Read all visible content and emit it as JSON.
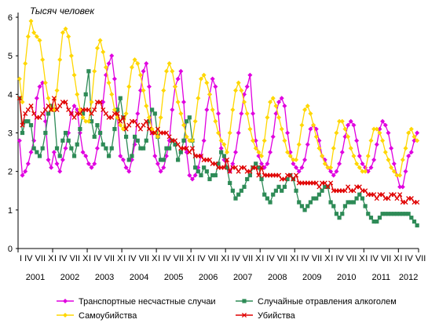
{
  "chart_data": {
    "type": "line",
    "unit_label": "Тысяч человек",
    "ylim": [
      0,
      6
    ],
    "y_ticks": [
      0,
      1,
      2,
      3,
      4,
      5,
      6
    ],
    "x_tick_label": "I IV VII X",
    "years": [
      "2001",
      "2002",
      "2003",
      "2004",
      "2005",
      "2006",
      "2007",
      "2008",
      "2009",
      "2010",
      "2011",
      "2012"
    ],
    "last_year_months": 7,
    "grid": false,
    "legend_position": "bottom",
    "series": [
      {
        "name": "Транспортные несчастные случаи",
        "color": "#e000e0",
        "marker": "diamond",
        "values": [
          2.8,
          1.9,
          2.0,
          2.2,
          2.5,
          2.8,
          3.9,
          4.2,
          4.3,
          3.3,
          2.3,
          2.1,
          2.5,
          2.2,
          2.0,
          2.3,
          2.6,
          3.0,
          3.5,
          3.7,
          3.6,
          3.0,
          2.5,
          2.4,
          2.2,
          2.1,
          2.2,
          2.6,
          3.0,
          3.8,
          4.5,
          4.8,
          5.0,
          4.4,
          3.4,
          2.4,
          2.3,
          2.1,
          2.0,
          2.3,
          2.7,
          3.5,
          4.1,
          4.6,
          4.8,
          4.2,
          3.0,
          2.4,
          2.2,
          2.0,
          2.1,
          2.4,
          2.8,
          3.6,
          4.2,
          4.4,
          4.6,
          3.8,
          2.5,
          1.9,
          1.8,
          1.9,
          2.1,
          2.4,
          2.8,
          3.6,
          4.0,
          4.4,
          4.2,
          3.5,
          2.6,
          2.3,
          2.1,
          2.0,
          2.2,
          2.5,
          3.0,
          3.5,
          4.0,
          4.2,
          4.5,
          3.5,
          2.8,
          2.4,
          2.2,
          2.1,
          2.2,
          2.5,
          2.9,
          3.5,
          3.8,
          3.9,
          3.7,
          3.0,
          2.5,
          2.2,
          2.1,
          2.0,
          2.1,
          2.3,
          2.7,
          3.1,
          3.2,
          3.1,
          2.8,
          2.4,
          2.3,
          2.1,
          2.0,
          1.9,
          2.0,
          2.2,
          2.5,
          2.9,
          3.2,
          3.3,
          3.2,
          2.8,
          2.4,
          2.2,
          2.1,
          2.0,
          2.1,
          2.3,
          2.7,
          3.1,
          3.3,
          3.2,
          3.0,
          2.6,
          2.2,
          1.9,
          1.6,
          1.6,
          2.0,
          2.4,
          2.5,
          2.8,
          3.0
        ]
      },
      {
        "name": "Случайные отравления алкоголем",
        "color": "#2e8b57",
        "marker": "square",
        "values": [
          3.9,
          3.0,
          3.3,
          3.3,
          3.2,
          2.6,
          2.5,
          2.4,
          2.6,
          3.0,
          3.5,
          3.7,
          3.6,
          2.6,
          2.4,
          2.8,
          3.0,
          2.8,
          2.6,
          2.4,
          2.7,
          3.1,
          3.5,
          4.0,
          4.6,
          3.3,
          2.9,
          3.2,
          3.0,
          2.7,
          2.6,
          2.4,
          2.6,
          3.1,
          3.6,
          3.9,
          3.4,
          2.9,
          2.3,
          2.4,
          2.9,
          2.8,
          2.6,
          2.6,
          2.8,
          3.3,
          3.6,
          3.5,
          2.9,
          2.3,
          2.3,
          2.6,
          2.6,
          2.8,
          2.7,
          2.3,
          2.5,
          2.8,
          3.3,
          3.4,
          2.8,
          2.1,
          2.0,
          1.9,
          2.1,
          2.0,
          1.8,
          1.9,
          1.9,
          2.2,
          2.5,
          2.4,
          2.1,
          1.7,
          1.5,
          1.3,
          1.4,
          1.5,
          1.6,
          1.8,
          1.9,
          2.1,
          2.2,
          2.1,
          1.8,
          1.4,
          1.3,
          1.2,
          1.4,
          1.5,
          1.6,
          1.5,
          1.6,
          1.8,
          1.9,
          1.8,
          1.5,
          1.2,
          1.1,
          1.0,
          1.1,
          1.2,
          1.3,
          1.3,
          1.4,
          1.5,
          1.6,
          1.6,
          1.2,
          1.1,
          0.9,
          0.8,
          0.9,
          1.1,
          1.2,
          1.2,
          1.2,
          1.3,
          1.4,
          1.3,
          1.1,
          0.9,
          0.8,
          0.7,
          0.7,
          0.8,
          0.9,
          0.9,
          0.9,
          0.9,
          0.9,
          0.9,
          0.9,
          0.9,
          0.9,
          0.9,
          0.8,
          0.7,
          0.6
        ]
      },
      {
        "name": "Самоубийства",
        "color": "#ffd700",
        "marker": "diamond",
        "values": [
          4.4,
          3.8,
          4.8,
          5.5,
          5.9,
          5.6,
          5.5,
          5.4,
          4.9,
          4.3,
          3.9,
          3.6,
          3.6,
          4.1,
          4.9,
          5.6,
          5.7,
          5.5,
          5.0,
          4.5,
          4.0,
          3.6,
          3.4,
          3.3,
          3.3,
          3.8,
          4.6,
          5.2,
          5.4,
          5.1,
          4.7,
          4.3,
          4.0,
          3.6,
          3.4,
          3.2,
          3.1,
          3.5,
          4.2,
          4.7,
          4.9,
          4.8,
          4.5,
          4.1,
          3.7,
          3.4,
          3.1,
          3.0,
          2.9,
          3.4,
          4.1,
          4.6,
          4.8,
          4.6,
          4.2,
          3.8,
          3.5,
          3.2,
          2.9,
          2.8,
          2.8,
          3.3,
          3.9,
          4.4,
          4.5,
          4.3,
          4.0,
          3.6,
          3.3,
          3.0,
          2.8,
          2.7,
          2.5,
          3.0,
          3.6,
          4.1,
          4.3,
          4.1,
          3.8,
          3.5,
          3.1,
          2.8,
          2.6,
          2.5,
          2.4,
          2.8,
          3.4,
          3.8,
          3.9,
          3.7,
          3.4,
          3.1,
          2.8,
          2.5,
          2.4,
          2.3,
          2.3,
          2.7,
          3.2,
          3.6,
          3.7,
          3.5,
          3.2,
          2.9,
          2.6,
          2.4,
          2.2,
          2.1,
          2.1,
          2.6,
          3.0,
          3.3,
          3.3,
          3.1,
          2.9,
          2.6,
          2.4,
          2.2,
          2.1,
          2.0,
          2.0,
          2.4,
          2.8,
          3.1,
          3.1,
          3.0,
          2.8,
          2.5,
          2.3,
          2.1,
          2.0,
          1.9,
          1.9,
          2.3,
          2.6,
          3.0,
          3.1,
          2.9,
          2.8
        ]
      },
      {
        "name": "Убийства",
        "color": "#e00000",
        "marker": "x",
        "values": [
          3.9,
          3.2,
          3.5,
          3.6,
          3.7,
          3.5,
          3.4,
          3.4,
          3.5,
          3.6,
          3.7,
          3.6,
          3.9,
          3.6,
          3.7,
          3.8,
          3.8,
          3.6,
          3.5,
          3.4,
          3.5,
          3.5,
          3.6,
          3.6,
          3.6,
          3.5,
          3.6,
          3.8,
          3.8,
          3.6,
          3.5,
          3.4,
          3.4,
          3.5,
          3.5,
          3.3,
          3.4,
          3.1,
          3.2,
          3.3,
          3.3,
          3.2,
          3.1,
          3.2,
          3.3,
          3.1,
          3.0,
          3.0,
          3.1,
          3.0,
          3.0,
          3.0,
          2.9,
          2.8,
          2.8,
          2.7,
          2.6,
          2.6,
          2.6,
          2.5,
          2.6,
          2.4,
          2.4,
          2.4,
          2.3,
          2.3,
          2.3,
          2.2,
          2.2,
          2.1,
          2.1,
          2.1,
          2.3,
          2.0,
          2.1,
          2.1,
          2.0,
          2.1,
          2.1,
          2.0,
          2.0,
          2.1,
          2.1,
          1.9,
          2.1,
          1.9,
          1.9,
          1.9,
          1.9,
          1.9,
          1.9,
          1.8,
          1.8,
          1.9,
          1.9,
          1.8,
          1.9,
          1.7,
          1.7,
          1.7,
          1.7,
          1.7,
          1.7,
          1.7,
          1.6,
          1.7,
          1.7,
          1.6,
          1.7,
          1.5,
          1.5,
          1.5,
          1.5,
          1.5,
          1.6,
          1.5,
          1.5,
          1.6,
          1.6,
          1.5,
          1.5,
          1.4,
          1.4,
          1.4,
          1.3,
          1.4,
          1.4,
          1.3,
          1.3,
          1.4,
          1.4,
          1.3,
          1.4,
          1.2,
          1.2,
          1.3,
          1.3,
          1.2,
          1.2
        ]
      }
    ]
  }
}
